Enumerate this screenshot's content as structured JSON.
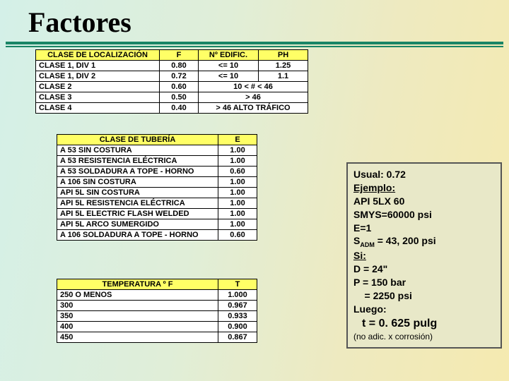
{
  "title": "Factores",
  "table1": {
    "headers": [
      "CLASE DE LOCALIZACIÓN",
      "F",
      "Nº EDIFIC.",
      "PH"
    ],
    "rows": [
      [
        "CLASE 1, DIV 1",
        "0.80",
        "<= 10",
        "1.25"
      ],
      [
        "CLASE 1, DIV 2",
        "0.72",
        "<= 10",
        "1.1"
      ],
      [
        "CLASE 2",
        "0.60",
        {
          "span": 2,
          "text": "10 < # < 46"
        }
      ],
      [
        "CLASE 3",
        "0.50",
        {
          "span": 2,
          "text": "> 46"
        }
      ],
      [
        "CLASE 4",
        "0.40",
        {
          "span": 2,
          "text": "> 46 ALTO TRÁFICO"
        }
      ]
    ],
    "col_widths": [
      "175px",
      "55px",
      "85px",
      "70px"
    ]
  },
  "table2": {
    "headers": [
      "CLASE DE TUBERÍA",
      "E"
    ],
    "rows": [
      [
        "A 53 SIN COSTURA",
        "1.00"
      ],
      [
        "A 53 RESISTENCIA ELÉCTRICA",
        "1.00"
      ],
      [
        "A 53 SOLDADURA A TOPE - HORNO",
        "0.60"
      ],
      [
        "A 106 SIN COSTURA",
        "1.00"
      ],
      [
        "API 5L SIN COSTURA",
        "1.00"
      ],
      [
        "API 5L RESISTENCIA ELÉCTRICA",
        "1.00"
      ],
      [
        "API 5L ELECTRIC FLASH WELDED",
        "1.00"
      ],
      [
        "API 5L ARCO SUMERGIDO",
        "1.00"
      ],
      [
        "A 106 SOLDADURA A TOPE - HORNO",
        "0.60"
      ]
    ],
    "col_widths": [
      "228px",
      "55px"
    ]
  },
  "table3": {
    "headers": [
      "TEMPERATURA º F",
      "T"
    ],
    "rows": [
      [
        "250 O MENOS",
        "1.000"
      ],
      [
        "300",
        "0.967"
      ],
      [
        "350",
        "0.933"
      ],
      [
        "400",
        "0.900"
      ],
      [
        "450",
        "0.867"
      ]
    ],
    "col_widths": [
      "228px",
      "55px"
    ]
  },
  "sidebox": {
    "l1": "Usual: 0.72",
    "l2": "Ejemplo:",
    "l3": "API 5LX 60",
    "l4": "SMYS=60000 psi",
    "l5": "E=1",
    "l6a": "S",
    "l6sub": "ADM",
    "l6b": " = 43, 200 psi",
    "l7": "Si:",
    "l8": "D = 24\"",
    "l9": "P = 150 bar",
    "l10": "    = 2250 psi",
    "l11": "Luego:",
    "l12": "t = 0. 625 pulg",
    "l13": "(no adic. x corrosión)"
  }
}
